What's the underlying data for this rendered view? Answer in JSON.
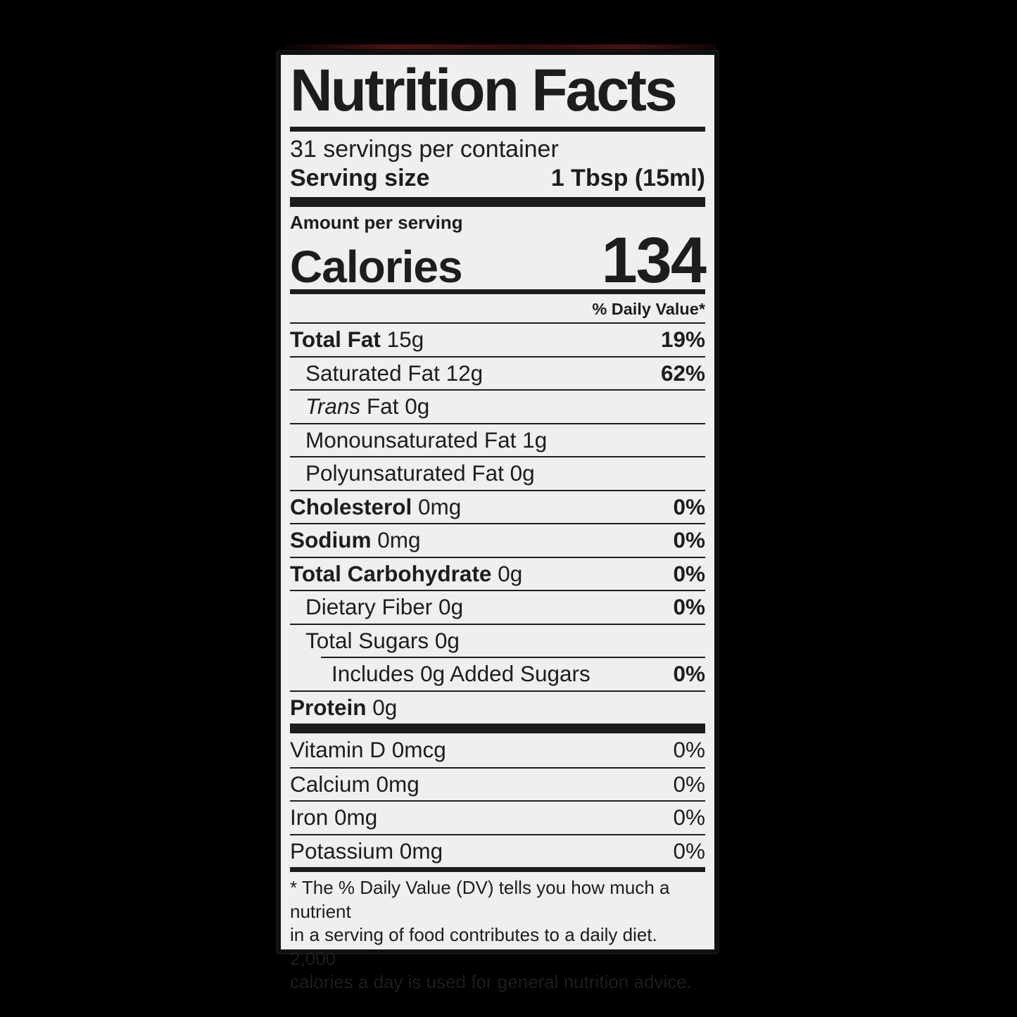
{
  "label": {
    "title": "Nutrition Facts",
    "servings_per_container": "31 servings per container",
    "serving_size_label": "Serving size",
    "serving_size_value": "1 Tbsp (15ml)",
    "amount_per_serving": "Amount per serving",
    "calories_label": "Calories",
    "calories_value": "134",
    "daily_value_header": "% Daily Value*",
    "nutrients": [
      {
        "b": "Total Fat",
        "i": "",
        "r": " 15g",
        "dv": "19%"
      },
      {
        "b": "",
        "i": "",
        "r": "Saturated Fat 12g",
        "dv": "62%"
      },
      {
        "b": "",
        "i": "Trans",
        "r": " Fat 0g",
        "dv": ""
      },
      {
        "b": "",
        "i": "",
        "r": "Monounsaturated Fat 1g",
        "dv": ""
      },
      {
        "b": "",
        "i": "",
        "r": "Polyunsaturated Fat 0g",
        "dv": ""
      },
      {
        "b": "Cholesterol",
        "i": "",
        "r": " 0mg",
        "dv": "0%"
      },
      {
        "b": "Sodium",
        "i": "",
        "r": " 0mg",
        "dv": "0%"
      },
      {
        "b": "Total Carbohydrate",
        "i": "",
        "r": " 0g",
        "dv": "0%"
      },
      {
        "b": "",
        "i": "",
        "r": "Dietary Fiber 0g",
        "dv": "0%"
      },
      {
        "b": "",
        "i": "",
        "r": "Total Sugars 0g",
        "dv": ""
      },
      {
        "b": "",
        "i": "",
        "r": "Includes 0g Added Sugars",
        "dv": "0%"
      },
      {
        "b": "Protein",
        "i": "",
        "r": " 0g",
        "dv": ""
      }
    ],
    "vitamins": [
      {
        "r": "Vitamin D 0mcg",
        "dv": "0%"
      },
      {
        "r": "Calcium 0mg",
        "dv": "0%"
      },
      {
        "r": "Iron 0mg",
        "dv": "0%"
      },
      {
        "r": "Potassium 0mg",
        "dv": "0%"
      }
    ],
    "footnote_lines": [
      "* The % Daily Value (DV) tells you how much a nutrient",
      "in a serving of food contributes to a daily diet. 2,000",
      "calories a day is used for general nutrition advice."
    ]
  },
  "colors": {
    "photo_background": "#000000",
    "label_background": "#edeff1",
    "label_text": "#1d1d1d",
    "label_border": "#101010",
    "photo_artifact_red": "#5a1416"
  }
}
